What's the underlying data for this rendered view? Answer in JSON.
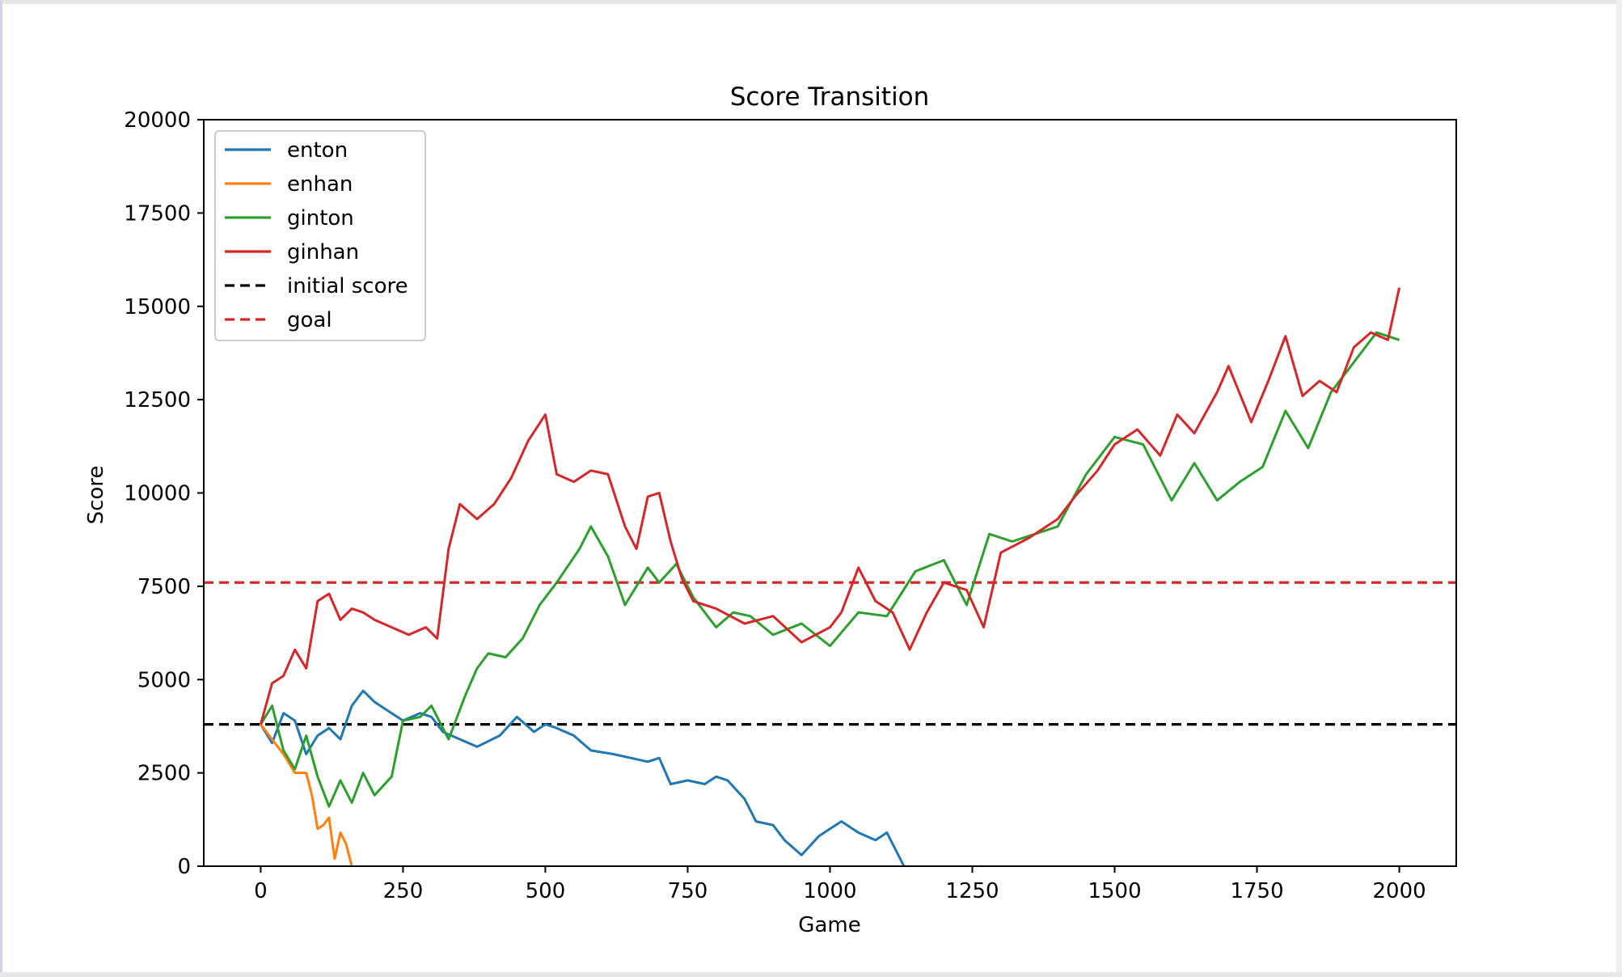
{
  "chart_data": {
    "type": "line",
    "title": "Score Transition",
    "xlabel": "Game",
    "ylabel": "Score",
    "xlim": [
      -100,
      2100
    ],
    "ylim": [
      0,
      20000
    ],
    "xticks": [
      0,
      250,
      500,
      750,
      1000,
      1250,
      1500,
      1750,
      2000
    ],
    "yticks": [
      0,
      2500,
      5000,
      7500,
      10000,
      12500,
      15000,
      17500,
      20000
    ],
    "grid": false,
    "legend_position": "upper-left",
    "series": [
      {
        "name": "enton",
        "color": "#1f77b4",
        "x": [
          0,
          20,
          40,
          60,
          80,
          100,
          120,
          140,
          160,
          180,
          200,
          220,
          250,
          280,
          300,
          320,
          350,
          380,
          420,
          450,
          480,
          500,
          520,
          550,
          580,
          620,
          650,
          680,
          700,
          720,
          750,
          780,
          800,
          820,
          850,
          870,
          900,
          920,
          950,
          980,
          1000,
          1020,
          1050,
          1080,
          1100,
          1130
        ],
        "y": [
          3800,
          3300,
          4100,
          3900,
          3000,
          3500,
          3700,
          3400,
          4300,
          4700,
          4400,
          4200,
          3900,
          4100,
          4000,
          3600,
          3400,
          3200,
          3500,
          4000,
          3600,
          3800,
          3700,
          3500,
          3100,
          3000,
          2900,
          2800,
          2900,
          2200,
          2300,
          2200,
          2400,
          2300,
          1800,
          1200,
          1100,
          700,
          300,
          800,
          1000,
          1200,
          900,
          700,
          900,
          0
        ]
      },
      {
        "name": "enhan",
        "color": "#ff7f0e",
        "x": [
          0,
          20,
          40,
          60,
          80,
          90,
          100,
          110,
          120,
          130,
          140,
          150,
          160
        ],
        "y": [
          3800,
          3400,
          3000,
          2500,
          2500,
          1900,
          1000,
          1100,
          1300,
          200,
          900,
          600,
          0
        ]
      },
      {
        "name": "ginton",
        "color": "#2ca02c",
        "x": [
          0,
          20,
          40,
          60,
          80,
          100,
          120,
          140,
          160,
          180,
          200,
          230,
          250,
          280,
          300,
          330,
          360,
          380,
          400,
          430,
          460,
          490,
          520,
          560,
          580,
          610,
          640,
          680,
          700,
          730,
          760,
          800,
          830,
          860,
          900,
          950,
          1000,
          1050,
          1100,
          1150,
          1200,
          1240,
          1280,
          1320,
          1360,
          1400,
          1450,
          1500,
          1550,
          1600,
          1640,
          1680,
          1720,
          1760,
          1800,
          1840,
          1880,
          1920,
          1960,
          2000
        ],
        "y": [
          3800,
          4300,
          3100,
          2600,
          3500,
          2400,
          1600,
          2300,
          1700,
          2500,
          1900,
          2400,
          3900,
          4000,
          4300,
          3400,
          4600,
          5300,
          5700,
          5600,
          6100,
          7000,
          7600,
          8500,
          9100,
          8300,
          7000,
          8000,
          7600,
          8100,
          7200,
          6400,
          6800,
          6700,
          6200,
          6500,
          5900,
          6800,
          6700,
          7900,
          8200,
          7000,
          8900,
          8700,
          8900,
          9100,
          10500,
          11500,
          11300,
          9800,
          10800,
          9800,
          10300,
          10700,
          12200,
          11200,
          12700,
          13500,
          14300,
          14100
        ]
      },
      {
        "name": "ginhan",
        "color": "#d62728",
        "x": [
          0,
          20,
          40,
          60,
          80,
          100,
          120,
          140,
          160,
          180,
          200,
          230,
          260,
          290,
          310,
          330,
          350,
          380,
          410,
          440,
          470,
          500,
          520,
          550,
          580,
          610,
          640,
          660,
          680,
          700,
          720,
          740,
          760,
          800,
          850,
          900,
          950,
          1000,
          1020,
          1050,
          1080,
          1110,
          1140,
          1170,
          1200,
          1240,
          1270,
          1300,
          1350,
          1400,
          1430,
          1470,
          1500,
          1540,
          1580,
          1610,
          1640,
          1680,
          1700,
          1740,
          1770,
          1800,
          1830,
          1860,
          1890,
          1920,
          1950,
          1980,
          2000
        ],
        "y": [
          3800,
          4900,
          5100,
          5800,
          5300,
          7100,
          7300,
          6600,
          6900,
          6800,
          6600,
          6400,
          6200,
          6400,
          6100,
          8500,
          9700,
          9300,
          9700,
          10400,
          11400,
          12100,
          10500,
          10300,
          10600,
          10500,
          9100,
          8500,
          9900,
          10000,
          8700,
          7700,
          7100,
          6900,
          6500,
          6700,
          6000,
          6400,
          6800,
          8000,
          7100,
          6800,
          5800,
          6800,
          7600,
          7400,
          6400,
          8400,
          8800,
          9300,
          9900,
          10600,
          11300,
          11700,
          11000,
          12100,
          11600,
          12700,
          13400,
          11900,
          13000,
          14200,
          12600,
          13000,
          12700,
          13900,
          14300,
          14100,
          15500
        ]
      }
    ],
    "reference_lines": [
      {
        "name": "initial score",
        "y": 3800,
        "color": "#000000",
        "style": "dashed"
      },
      {
        "name": "goal",
        "y": 7600,
        "color": "#d62728",
        "style": "dashed"
      }
    ]
  }
}
